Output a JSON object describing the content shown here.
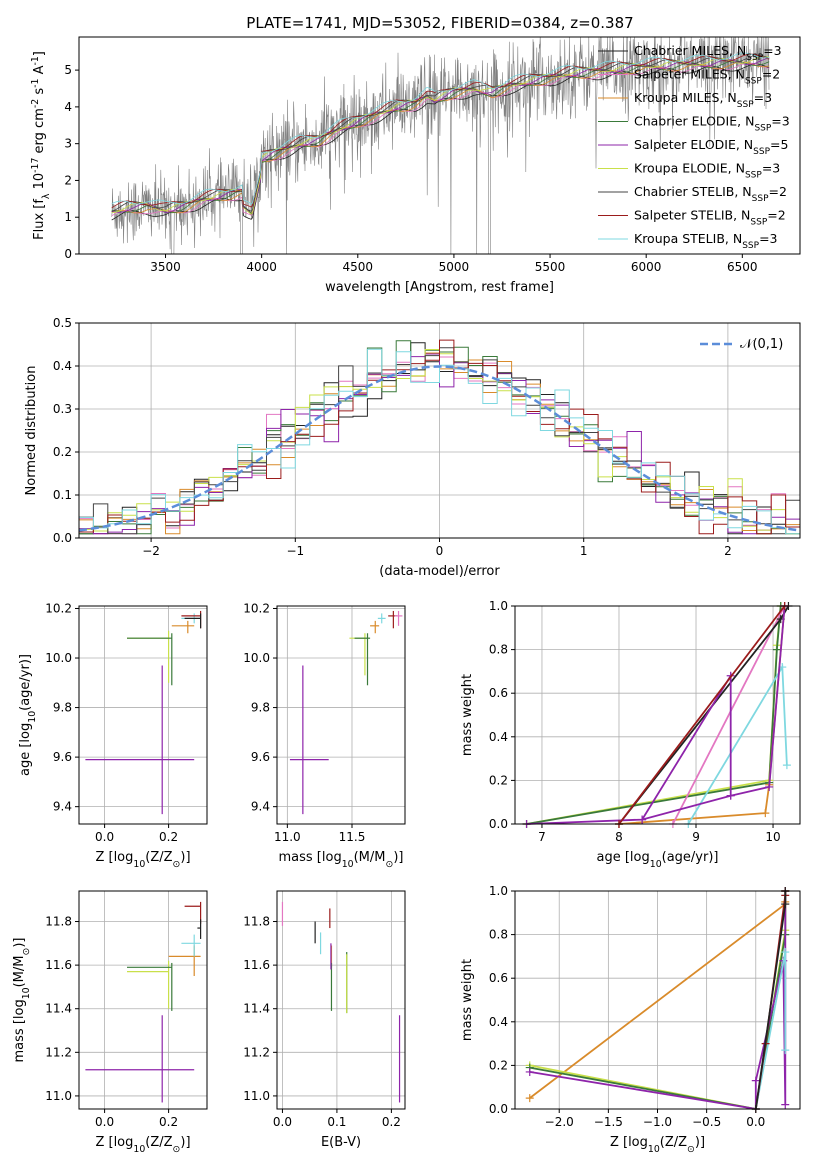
{
  "title": "PLATE=1741, MJD=53052, FIBERID=0384, z=0.387",
  "colors": {
    "Chabrier MILES": "#222222",
    "Salpeter MILES": "#e377c2",
    "Kroupa MILES": "#d98b2b",
    "Chabrier ELODIE": "#3a7a3a",
    "Salpeter ELODIE": "#8e24aa",
    "Kroupa ELODIE": "#c9e04a",
    "Chabrier STELIB": "#444444",
    "Salpeter STELIB": "#9b1c1c",
    "Kroupa STELIB": "#7fd8e0",
    "data": "#808080",
    "grid": "#b0b0b0",
    "gauss": "#5b8dd9",
    "orange": "#ff7f0e"
  },
  "legend_entries": [
    "Chabrier MILES, N$_{SSP}$=3",
    "Salpeter MILES, N$_{SSP}$=2",
    "Kroupa MILES, N$_{SSP}$=3",
    "Chabrier ELODIE, N$_{SSP}$=3",
    "Salpeter ELODIE, N$_{SSP}$=5",
    "Kroupa ELODIE, N$_{SSP}$=3",
    "Chabrier STELIB, N$_{SSP}$=2",
    "Salpeter STELIB, N$_{SSP}$=2",
    "Kroupa STELIB, N$_{SSP}$=3"
  ],
  "chart_data": [
    {
      "type": "line",
      "panel": "spectrum",
      "xlabel": "wavelength [Angstrom, rest frame]",
      "ylabel": "Flux [f$_\\lambda$ 10$^{-17}$ erg cm$^{-2}$ s$^{-1}$ A$^{-1}$]",
      "xlim": [
        3050,
        6800
      ],
      "ylim": [
        0,
        5.9
      ],
      "xticks": [
        3500,
        4000,
        4500,
        5000,
        5500,
        6000,
        6500
      ],
      "yticks": [
        0,
        1,
        2,
        3,
        4,
        5
      ],
      "model_knots": [
        [
          3220,
          1.15
        ],
        [
          3300,
          1.25
        ],
        [
          3400,
          1.3
        ],
        [
          3500,
          1.2
        ],
        [
          3600,
          1.3
        ],
        [
          3700,
          1.5
        ],
        [
          3800,
          1.6
        ],
        [
          3900,
          1.7
        ],
        [
          3950,
          1.5
        ],
        [
          4000,
          2.6
        ],
        [
          4100,
          2.8
        ],
        [
          4200,
          3.0
        ],
        [
          4300,
          3.1
        ],
        [
          4400,
          3.4
        ],
        [
          4500,
          3.6
        ],
        [
          4600,
          3.8
        ],
        [
          4700,
          4.0
        ],
        [
          4800,
          4.1
        ],
        [
          4860,
          4.3
        ],
        [
          4900,
          4.2
        ],
        [
          5000,
          4.4
        ],
        [
          5100,
          4.5
        ],
        [
          5200,
          4.4
        ],
        [
          5300,
          4.6
        ],
        [
          5400,
          4.7
        ],
        [
          5500,
          4.8
        ],
        [
          5600,
          4.9
        ],
        [
          5800,
          5.0
        ],
        [
          6000,
          5.1
        ],
        [
          6200,
          5.15
        ],
        [
          6400,
          5.2
        ],
        [
          6600,
          5.25
        ]
      ],
      "legend_location": "upper right",
      "grid": false
    },
    {
      "type": "line",
      "panel": "residual histogram",
      "xlabel": "(data-model)/error",
      "ylabel": "Normed distribution",
      "xlim": [
        -2.5,
        2.5
      ],
      "ylim": [
        0,
        0.5
      ],
      "xticks": [
        -2,
        -1,
        0,
        1,
        2
      ],
      "yticks": [
        0.0,
        0.1,
        0.2,
        0.3,
        0.4,
        0.5
      ],
      "gaussian_label": "$\\mathcal{N}(0,1)$",
      "legend_location": "upper right",
      "grid": true
    },
    {
      "type": "scatter",
      "panel": "age vs Z",
      "xlabel": "Z [log$_{10}$(Z/Z$_\\odot$)]",
      "ylabel": "age  [log$_{10}$(age/yr)]",
      "xlim": [
        -0.08,
        0.32
      ],
      "ylim": [
        9.33,
        10.21
      ],
      "xticks": [
        "0.0",
        "0.2"
      ],
      "yticks": [
        "9.4",
        "9.6",
        "9.8",
        "10.0",
        "10.2"
      ],
      "points": [
        {
          "model": "Salpeter ELODIE",
          "x": 0.18,
          "y": 9.59,
          "xerr": [
            0.24,
            0.1
          ],
          "yerr": [
            0.22,
            0.38
          ]
        },
        {
          "model": "Kroupa ELODIE",
          "x": 0.2,
          "y": 10.08,
          "xerr": [
            0.13,
            0.0
          ],
          "yerr": [
            0.18,
            0.03
          ]
        },
        {
          "model": "Chabrier ELODIE",
          "x": 0.21,
          "y": 10.08,
          "xerr": [
            0.14,
            0.0
          ],
          "yerr": [
            0.19,
            0.02
          ]
        },
        {
          "model": "Kroupa MILES",
          "x": 0.26,
          "y": 10.13,
          "xerr": [
            0.05,
            0.02
          ],
          "yerr": [
            0.03,
            0.02
          ]
        },
        {
          "model": "Kroupa STELIB",
          "x": 0.28,
          "y": 10.16,
          "xerr": [
            0.04,
            0.02
          ],
          "yerr": [
            0.02,
            0.02
          ]
        },
        {
          "model": "Salpeter STELIB",
          "x": 0.3,
          "y": 10.17,
          "xerr": [
            0.06,
            0.0
          ],
          "yerr": [
            0.05,
            0.02
          ]
        },
        {
          "model": "Chabrier MILES",
          "x": 0.3,
          "y": 10.16,
          "xerr": [
            0.05,
            0.0
          ],
          "yerr": [
            0.04,
            0.02
          ]
        }
      ]
    },
    {
      "type": "scatter",
      "panel": "age vs mass",
      "xlabel": "mass [log$_{10}$(M/M$_\\odot$)]",
      "ylabel": "",
      "xlim": [
        10.92,
        11.91
      ],
      "ylim": [
        9.33,
        10.21
      ],
      "xticks": [
        "11.0",
        "11.5"
      ],
      "yticks": [
        "9.4",
        "9.6",
        "9.8",
        "10.0",
        "10.2"
      ],
      "points": [
        {
          "model": "Salpeter ELODIE",
          "x": 11.12,
          "y": 9.59,
          "xerr": [
            0.1,
            0.2
          ],
          "yerr": [
            0.22,
            0.38
          ]
        },
        {
          "model": "Kroupa ELODIE",
          "x": 11.6,
          "y": 10.08,
          "xerr": [
            0.12,
            0.02
          ],
          "yerr": [
            0.15,
            0.02
          ]
        },
        {
          "model": "Chabrier ELODIE",
          "x": 11.62,
          "y": 10.08,
          "xerr": [
            0.1,
            0.02
          ],
          "yerr": [
            0.19,
            0.02
          ]
        },
        {
          "model": "Kroupa MILES",
          "x": 11.68,
          "y": 10.13,
          "xerr": [
            0.04,
            0.03
          ],
          "yerr": [
            0.03,
            0.02
          ]
        },
        {
          "model": "Kroupa STELIB",
          "x": 11.73,
          "y": 10.16,
          "xerr": [
            0.03,
            0.03
          ],
          "yerr": [
            0.02,
            0.02
          ]
        },
        {
          "model": "Salpeter STELIB",
          "x": 11.82,
          "y": 10.17,
          "xerr": [
            0.04,
            0.03
          ],
          "yerr": [
            0.05,
            0.02
          ]
        },
        {
          "model": "Salpeter MILES",
          "x": 11.86,
          "y": 10.17,
          "xerr": [
            0.03,
            0.03
          ],
          "yerr": [
            0.04,
            0.02
          ]
        }
      ]
    },
    {
      "type": "line",
      "panel": "mass weight vs age",
      "xlabel": "age  [log$_{10}$(age/yr)]",
      "ylabel": "mass weight",
      "xlim": [
        6.65,
        10.35
      ],
      "ylim": [
        0,
        1
      ],
      "xticks": [
        "7",
        "8",
        "9",
        "10"
      ],
      "yticks": [
        "0.0",
        "0.2",
        "0.4",
        "0.6",
        "0.8",
        "1.0"
      ],
      "series": [
        {
          "model": "Kroupa ELODIE",
          "x": [
            6.8,
            9.95,
            10.05,
            10.1
          ],
          "y": [
            0.0,
            0.2,
            0.82,
            1.0
          ]
        },
        {
          "model": "Chabrier ELODIE",
          "x": [
            6.8,
            9.95,
            10.05,
            10.1
          ],
          "y": [
            0.0,
            0.19,
            0.8,
            1.0
          ]
        },
        {
          "model": "Kroupa MILES",
          "x": [
            8.0,
            9.9,
            9.95,
            10.15
          ],
          "y": [
            0.0,
            0.05,
            0.18,
            1.0
          ]
        },
        {
          "model": "Salpeter MILES",
          "x": [
            8.7,
            10.15
          ],
          "y": [
            0.0,
            1.0
          ]
        },
        {
          "model": "Kroupa STELIB",
          "x": [
            8.9,
            10.12,
            10.18
          ],
          "y": [
            0.0,
            0.72,
            0.27
          ]
        },
        {
          "model": "Chabrier MILES",
          "x": [
            8.0,
            10.1,
            10.2
          ],
          "y": [
            0.0,
            0.94,
            1.0
          ]
        },
        {
          "model": "Salpeter ELODIE",
          "x": [
            6.8,
            8.3,
            9.45,
            9.95,
            10.15
          ],
          "y": [
            0.0,
            0.02,
            0.13,
            0.17,
            1.0
          ]
        },
        {
          "model": "Salpeter ELODIE",
          "x": [
            8.3,
            9.45,
            9.45
          ],
          "y": [
            0.02,
            0.68,
            0.13
          ]
        },
        {
          "model": "Salpeter STELIB",
          "x": [
            8.0,
            10.15
          ],
          "y": [
            0.0,
            1.0
          ]
        }
      ]
    },
    {
      "type": "scatter",
      "panel": "mass vs Z",
      "xlabel": "Z [log$_{10}$(Z/Z$_\\odot$)]",
      "ylabel": "mass [log$_{10}$(M/M$_\\odot$)]",
      "xlim": [
        -0.08,
        0.32
      ],
      "ylim": [
        10.94,
        11.94
      ],
      "xticks": [
        "0.0",
        "0.2"
      ],
      "yticks": [
        "11.0",
        "11.2",
        "11.4",
        "11.6",
        "11.8"
      ],
      "points": [
        {
          "model": "Salpeter ELODIE",
          "x": 0.18,
          "y": 11.12,
          "xerr": [
            0.24,
            0.1
          ],
          "yerr": [
            0.15,
            0.25
          ]
        },
        {
          "model": "Kroupa ELODIE",
          "x": 0.2,
          "y": 11.57,
          "xerr": [
            0.13,
            0.0
          ],
          "yerr": [
            0.17,
            0.05
          ]
        },
        {
          "model": "Chabrier ELODIE",
          "x": 0.21,
          "y": 11.59,
          "xerr": [
            0.14,
            0.0
          ],
          "yerr": [
            0.2,
            0.02
          ]
        },
        {
          "model": "Kroupa MILES",
          "x": 0.28,
          "y": 11.64,
          "xerr": [
            0.08,
            0.02
          ],
          "yerr": [
            0.09,
            0.05
          ]
        },
        {
          "model": "Kroupa STELIB",
          "x": 0.28,
          "y": 11.7,
          "xerr": [
            0.04,
            0.02
          ],
          "yerr": [
            0.06,
            0.04
          ]
        },
        {
          "model": "Salpeter STELIB",
          "x": 0.3,
          "y": 11.87,
          "xerr": [
            0.05,
            0.0
          ],
          "yerr": [
            0.08,
            0.02
          ]
        },
        {
          "model": "Chabrier MILES",
          "x": 0.3,
          "y": 11.77,
          "xerr": [
            0.01,
            0.0
          ],
          "yerr": [
            0.05,
            0.04
          ]
        }
      ]
    },
    {
      "type": "scatter",
      "panel": "mass vs E(B-V)",
      "xlabel": "E(B-V)",
      "ylabel": "",
      "xlim": [
        -0.01,
        0.225
      ],
      "ylim": [
        10.94,
        11.94
      ],
      "xticks": [
        "0.0",
        "0.1",
        "0.2"
      ],
      "yticks": [
        "11.0",
        "11.2",
        "11.4",
        "11.6",
        "11.8"
      ],
      "points": [
        {
          "model": "Salpeter MILES",
          "x": 0.0,
          "y": 11.84,
          "xerr": [
            0,
            0
          ],
          "yerr": [
            0.06,
            0.05
          ]
        },
        {
          "model": "Chabrier MILES",
          "x": 0.06,
          "y": 11.75,
          "xerr": [
            0,
            0
          ],
          "yerr": [
            0.05,
            0.05
          ]
        },
        {
          "model": "Kroupa STELIB",
          "x": 0.07,
          "y": 11.7,
          "xerr": [
            0,
            0
          ],
          "yerr": [
            0.05,
            0.05
          ]
        },
        {
          "model": "Salpeter STELIB",
          "x": 0.087,
          "y": 11.81,
          "xerr": [
            0,
            0
          ],
          "yerr": [
            0.04,
            0.05
          ]
        },
        {
          "model": "Kroupa MILES",
          "x": 0.09,
          "y": 11.64,
          "xerr": [
            0,
            0
          ],
          "yerr": [
            0.05,
            0.05
          ]
        },
        {
          "model": "Chabrier ELODIE",
          "x": 0.09,
          "y": 11.59,
          "xerr": [
            0,
            0
          ],
          "yerr": [
            0.2,
            0.02
          ]
        },
        {
          "model": "Salpeter ELODIE",
          "x": 0.089,
          "y": 11.64,
          "xerr": [
            0,
            0
          ],
          "yerr": [
            0.06,
            0.06
          ]
        },
        {
          "model": "Chabrier ELODIE",
          "x": 0.118,
          "y": 11.58,
          "xerr": [
            0,
            0
          ],
          "yerr": [
            0.2,
            0.08
          ]
        },
        {
          "model": "Kroupa ELODIE",
          "x": 0.118,
          "y": 11.55,
          "xerr": [
            0,
            0
          ],
          "yerr": [
            0.17,
            0.1
          ]
        },
        {
          "model": "Salpeter ELODIE",
          "x": 0.215,
          "y": 11.12,
          "xerr": [
            0,
            0
          ],
          "yerr": [
            0.15,
            0.25
          ]
        }
      ]
    },
    {
      "type": "line",
      "panel": "mass weight vs Z",
      "xlabel": "Z [log$_{10}$(Z/Z$_\\odot$)]",
      "ylabel": "mass weight",
      "xlim": [
        -2.45,
        0.45
      ],
      "ylim": [
        0,
        1
      ],
      "xticks": [
        "−2.0",
        "−1.5",
        "−1.0",
        "−0.5",
        "0.0"
      ],
      "yticks": [
        "0.0",
        "0.2",
        "0.4",
        "0.6",
        "0.8",
        "1.0"
      ],
      "series": [
        {
          "model": "Kroupa MILES",
          "x": [
            -2.3,
            0.3,
            0.3,
            0.3
          ],
          "y": [
            0.05,
            0.94,
            0.95,
            1.0
          ]
        },
        {
          "model": "Kroupa ELODIE",
          "x": [
            -2.3,
            0.0,
            0.3,
            0.3
          ],
          "y": [
            0.2,
            0.0,
            0.82,
            1.0
          ]
        },
        {
          "model": "Chabrier ELODIE",
          "x": [
            -2.3,
            0.0,
            0.3,
            0.3
          ],
          "y": [
            0.19,
            0.0,
            0.8,
            1.0
          ]
        },
        {
          "model": "Salpeter ELODIE",
          "x": [
            -2.3,
            0.0,
            0.0,
            0.28,
            0.3,
            0.3
          ],
          "y": [
            0.17,
            0.0,
            0.13,
            0.68,
            0.02,
            1.0
          ]
        },
        {
          "model": "Kroupa STELIB",
          "x": [
            0.0,
            0.3,
            0.3
          ],
          "y": [
            0.0,
            0.72,
            0.27
          ]
        },
        {
          "model": "Salpeter STELIB",
          "x": [
            0.0,
            0.1,
            0.3,
            0.3
          ],
          "y": [
            0.0,
            0.3,
            0.98,
            1.0
          ]
        },
        {
          "model": "Chabrier MILES",
          "x": [
            0.0,
            0.3,
            0.3
          ],
          "y": [
            0.0,
            0.94,
            1.0
          ]
        }
      ]
    }
  ]
}
